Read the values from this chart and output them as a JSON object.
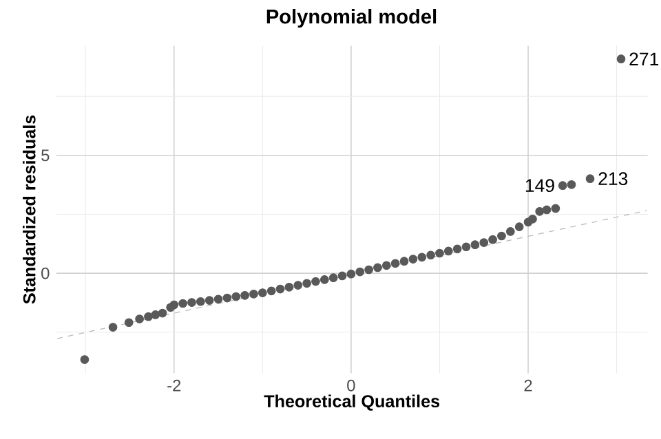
{
  "chart_data": {
    "type": "scatter",
    "title": "Polynomial model",
    "xlabel": "Theoretical Quantiles",
    "ylabel": "Standardized residuals",
    "xlim": [
      -3.33,
      3.35
    ],
    "ylim": [
      -4.24,
      9.65
    ],
    "xticks": [
      {
        "value": -3,
        "label": null
      },
      -2,
      {
        "value": -1,
        "label": null
      },
      0,
      {
        "value": 1,
        "label": null
      },
      2,
      {
        "value": 3,
        "label": null
      }
    ],
    "yticks": [
      {
        "value": -2.5,
        "label": null
      },
      0,
      {
        "value": 2.5,
        "label": null
      },
      5,
      {
        "value": 7.5,
        "label": null
      }
    ],
    "grid": true,
    "series": [
      {
        "type": "line",
        "line_style": "dashed",
        "color": "#bbbbbb",
        "x": [
          -3.32,
          3.34
        ],
        "values": [
          -2.77,
          2.66
        ]
      },
      {
        "color": "#595959",
        "x": [
          -3.01,
          -2.69,
          -2.51,
          -2.39,
          -2.29,
          -2.21,
          -2.13,
          -2.04,
          -2.0,
          -1.9,
          -1.8,
          -1.7,
          -1.6,
          -1.5,
          -1.4,
          -1.3,
          -1.2,
          -1.1,
          -1.0,
          -0.9,
          -0.8,
          -0.7,
          -0.6,
          -0.5,
          -0.4,
          -0.3,
          -0.2,
          -0.1,
          0,
          0.1,
          0.2,
          0.3,
          0.4,
          0.5,
          0.6,
          0.7,
          0.8,
          0.9,
          1.0,
          1.1,
          1.2,
          1.3,
          1.4,
          1.5,
          1.6,
          1.7,
          1.8,
          1.9,
          2.0,
          2.05,
          2.13,
          2.21,
          2.31,
          2.39,
          2.49,
          2.7,
          3.05
        ],
        "values": [
          -3.66,
          -2.29,
          -2.09,
          -1.94,
          -1.84,
          -1.76,
          -1.69,
          -1.45,
          -1.34,
          -1.28,
          -1.24,
          -1.2,
          -1.15,
          -1.1,
          -1.05,
          -0.99,
          -0.94,
          -0.88,
          -0.83,
          -0.75,
          -0.67,
          -0.59,
          -0.51,
          -0.43,
          -0.35,
          -0.27,
          -0.19,
          -0.11,
          -0.03,
          0.06,
          0.15,
          0.24,
          0.33,
          0.42,
          0.51,
          0.6,
          0.68,
          0.77,
          0.85,
          0.94,
          1.03,
          1.12,
          1.21,
          1.3,
          1.43,
          1.58,
          1.77,
          1.97,
          2.17,
          2.3,
          2.62,
          2.69,
          2.75,
          3.72,
          3.76,
          4.01,
          9.09
        ]
      }
    ],
    "annotations": [
      {
        "text": "149",
        "x": 2.39,
        "y": 3.72
      },
      {
        "text": "213",
        "x": 2.7,
        "y": 4.01
      },
      {
        "text": "271",
        "x": 3.05,
        "y": 9.09
      }
    ]
  }
}
